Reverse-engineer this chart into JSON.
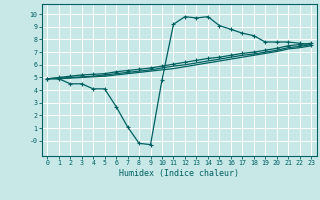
{
  "bg_color": "#c8e8e8",
  "grid_color": "#ffffff",
  "line_color": "#006060",
  "xlabel": "Humidex (Indice chaleur)",
  "xlim": [
    -0.5,
    23.5
  ],
  "ylim": [
    -1.2,
    10.8
  ],
  "xticks": [
    0,
    1,
    2,
    3,
    4,
    5,
    6,
    7,
    8,
    9,
    10,
    11,
    12,
    13,
    14,
    15,
    16,
    17,
    18,
    19,
    20,
    21,
    22,
    23
  ],
  "yticks": [
    0,
    1,
    2,
    3,
    4,
    5,
    6,
    7,
    8,
    9,
    10
  ],
  "ytick_labels": [
    "-0",
    "1",
    "2",
    "3",
    "4",
    "5",
    "6",
    "7",
    "8",
    "9",
    "10"
  ],
  "line1_x": [
    0,
    1,
    2,
    3,
    4,
    5,
    6,
    7,
    8,
    9,
    10,
    11,
    12,
    13,
    14,
    15,
    16,
    17,
    18,
    19,
    20,
    21,
    22,
    23
  ],
  "line1_y": [
    4.9,
    4.9,
    4.5,
    4.5,
    4.1,
    4.1,
    2.7,
    1.1,
    -0.2,
    -0.3,
    4.8,
    9.2,
    9.8,
    9.7,
    9.8,
    9.1,
    8.8,
    8.5,
    8.3,
    7.8,
    7.8,
    7.8,
    7.7,
    7.6
  ],
  "line2_x": [
    0,
    1,
    2,
    3,
    4,
    5,
    6,
    7,
    8,
    9,
    10,
    11,
    12,
    13,
    14,
    15,
    16,
    17,
    18,
    19,
    20,
    21,
    22,
    23
  ],
  "line2_y": [
    4.9,
    5.0,
    5.1,
    5.2,
    5.25,
    5.3,
    5.45,
    5.55,
    5.65,
    5.75,
    5.9,
    6.05,
    6.2,
    6.35,
    6.5,
    6.6,
    6.75,
    6.9,
    7.0,
    7.15,
    7.3,
    7.5,
    7.6,
    7.7
  ],
  "line3_x": [
    0,
    1,
    2,
    3,
    4,
    5,
    6,
    7,
    8,
    9,
    10,
    11,
    12,
    13,
    14,
    15,
    16,
    17,
    18,
    19,
    20,
    21,
    22,
    23
  ],
  "line3_y": [
    4.9,
    4.9,
    4.95,
    5.0,
    5.05,
    5.1,
    5.2,
    5.3,
    5.4,
    5.5,
    5.6,
    5.7,
    5.85,
    6.0,
    6.15,
    6.3,
    6.45,
    6.6,
    6.75,
    6.9,
    7.05,
    7.25,
    7.35,
    7.5
  ],
  "line4_x": [
    0,
    1,
    2,
    3,
    4,
    5,
    6,
    7,
    8,
    9,
    10,
    11,
    12,
    13,
    14,
    15,
    16,
    17,
    18,
    19,
    20,
    21,
    22,
    23
  ],
  "line4_y": [
    4.9,
    4.95,
    5.0,
    5.05,
    5.1,
    5.2,
    5.3,
    5.4,
    5.5,
    5.6,
    5.75,
    5.9,
    6.0,
    6.15,
    6.3,
    6.45,
    6.6,
    6.75,
    6.85,
    7.0,
    7.15,
    7.35,
    7.45,
    7.6
  ]
}
